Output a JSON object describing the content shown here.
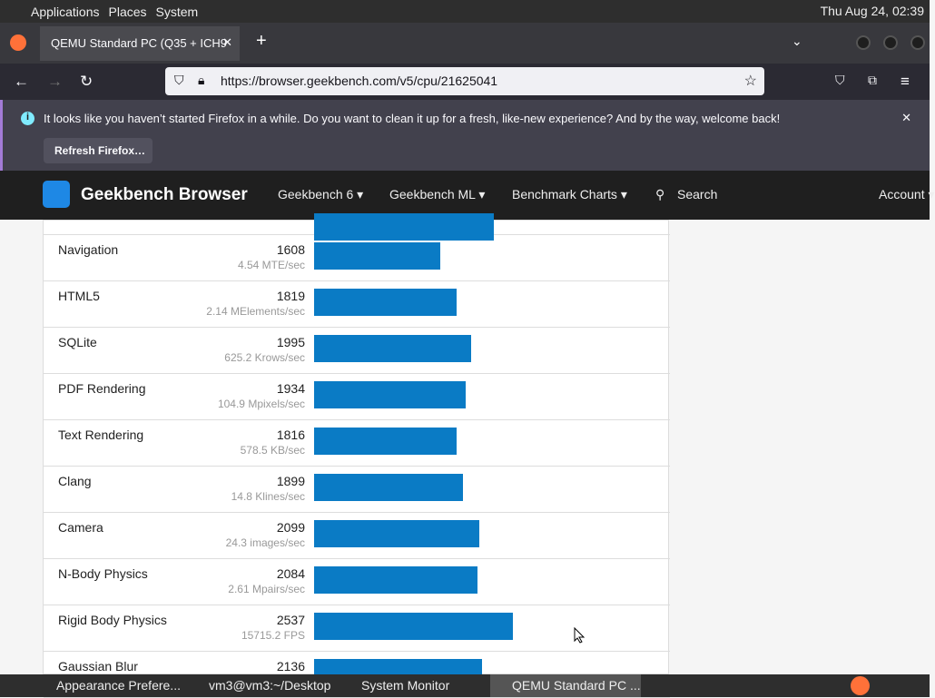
{
  "desktop": {
    "menus": [
      "Applications",
      "Places",
      "System"
    ],
    "clock": "Thu Aug 24, 02:39"
  },
  "browser": {
    "tab_title": "QEMU Standard PC (Q35 + ICH9",
    "url": "https://browser.geekbench.com/v5/cpu/21625041",
    "notice": {
      "message": "It looks like you haven’t started Firefox in a while. Do you want to clean it up for a fresh, like-new experience? And by the way, welcome back!",
      "button": "Refresh Firefox…"
    }
  },
  "site": {
    "brand": "Geekbench Browser",
    "nav": [
      "Geekbench 6 ▾",
      "Geekbench ML ▾",
      "Benchmark Charts ▾",
      "Search",
      "Account ▾"
    ]
  },
  "rows": [
    {
      "name": "Navigation",
      "score": 1608,
      "unit": "4.54 MTE/sec"
    },
    {
      "name": "HTML5",
      "score": 1819,
      "unit": "2.14 MElements/sec"
    },
    {
      "name": "SQLite",
      "score": 1995,
      "unit": "625.2 Krows/sec"
    },
    {
      "name": "PDF Rendering",
      "score": 1934,
      "unit": "104.9 Mpixels/sec"
    },
    {
      "name": "Text Rendering",
      "score": 1816,
      "unit": "578.5 KB/sec"
    },
    {
      "name": "Clang",
      "score": 1899,
      "unit": "14.8 Klines/sec"
    },
    {
      "name": "Camera",
      "score": 2099,
      "unit": "24.3 images/sec"
    },
    {
      "name": "N-Body Physics",
      "score": 2084,
      "unit": "2.61 Mpairs/sec"
    },
    {
      "name": "Rigid Body Physics",
      "score": 2537,
      "unit": "15715.2 FPS"
    },
    {
      "name": "Gaussian Blur",
      "score": 2136,
      "unit": ""
    }
  ],
  "bar_color": "#0a7bc5",
  "taskbar": [
    "Appearance Prefere...",
    "vm3@vm3:~/Desktop",
    "System Monitor",
    "QEMU Standard PC ..."
  ]
}
